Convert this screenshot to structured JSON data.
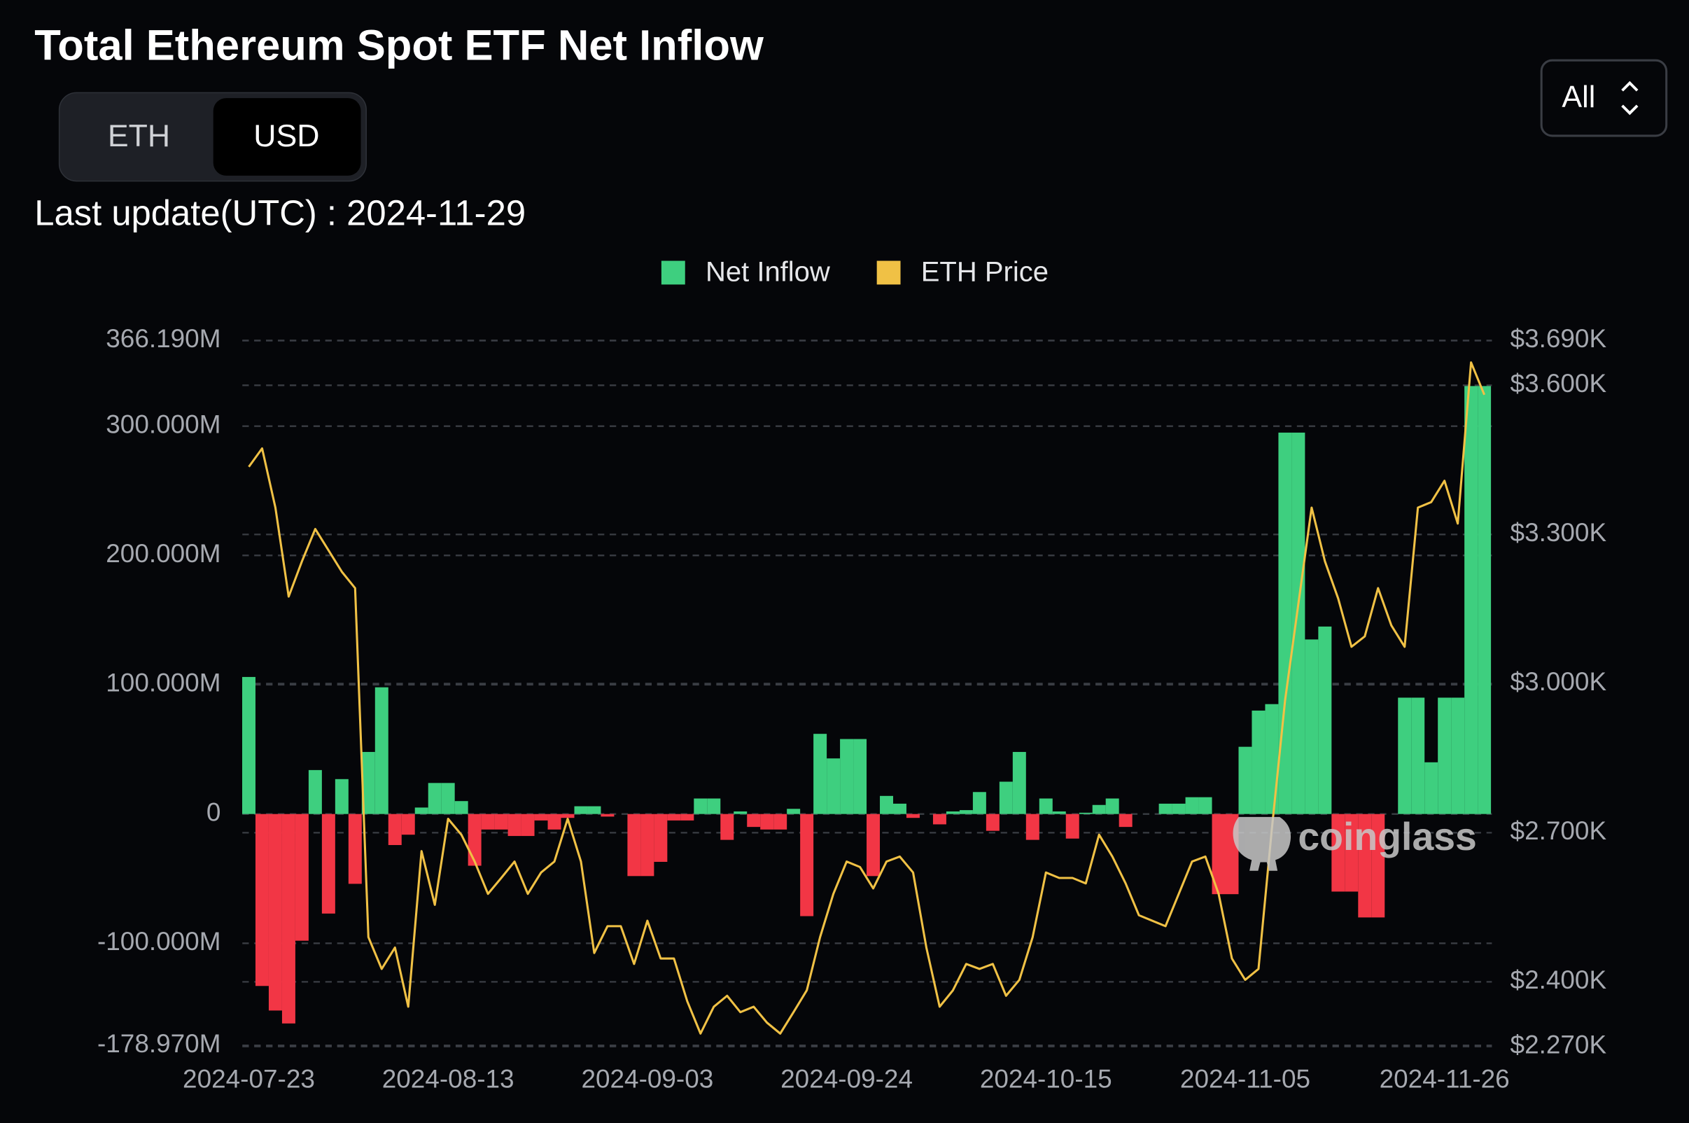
{
  "chart_data": {
    "type": "bar",
    "title": "Total Ethereum Spot ETF Net Inflow",
    "toggle": [
      "ETH",
      "USD"
    ],
    "range_select": "All",
    "last_update": "Last update(UTC) : 2024-11-29",
    "watermark": "coinglass",
    "categories": [
      "2024-07-23",
      null,
      null,
      null,
      null,
      null,
      null,
      null,
      null,
      null,
      null,
      null,
      null,
      null,
      null,
      "2024-08-13",
      null,
      null,
      null,
      null,
      null,
      null,
      null,
      null,
      null,
      null,
      null,
      null,
      null,
      null,
      "2024-09-03",
      null,
      null,
      null,
      null,
      null,
      null,
      null,
      null,
      null,
      null,
      null,
      null,
      null,
      null,
      "2024-09-24",
      null,
      null,
      null,
      null,
      null,
      null,
      null,
      null,
      null,
      null,
      null,
      null,
      null,
      null,
      "2024-10-15",
      null,
      null,
      null,
      null,
      null,
      null,
      null,
      null,
      null,
      null,
      null,
      null,
      null,
      null,
      "2024-11-05",
      null,
      null,
      null,
      null,
      null,
      null,
      null,
      null,
      null,
      null,
      null,
      null,
      null,
      null,
      "2024-11-26",
      null,
      null,
      null
    ],
    "series": [
      {
        "name": "Net Inflow",
        "color": "#3ecf7f",
        "negative_color": "#f23645",
        "values": [
          106000000,
          -133000000,
          -152000000,
          -162000000,
          -98000000,
          34000000,
          -77000000,
          27000000,
          -54000000,
          48000000,
          98000000,
          -24000000,
          -16000000,
          5000000,
          24000000,
          24000000,
          10000000,
          -40000000,
          -12000000,
          -12000000,
          -17000000,
          -17000000,
          -5000000,
          -12000000,
          -3000000,
          6000000,
          6000000,
          -2000000,
          0,
          -48000000,
          -48000000,
          -37000000,
          -5000000,
          -5000000,
          12000000,
          12000000,
          -20000000,
          2000000,
          -10000000,
          -12000000,
          -12000000,
          4000000,
          -79000000,
          62000000,
          43000000,
          58000000,
          58000000,
          -48000000,
          14000000,
          8000000,
          -3000000,
          0,
          -8000000,
          2000000,
          3000000,
          17000000,
          -13000000,
          25000000,
          48000000,
          -20000000,
          12000000,
          2000000,
          -19000000,
          1000000,
          7000000,
          12000000,
          -10000000,
          0,
          0,
          8000000,
          8000000,
          13000000,
          13000000,
          -62000000,
          -62000000,
          52000000,
          80000000,
          85000000,
          295000000,
          295000000,
          135000000,
          145000000,
          -60000000,
          -60000000,
          -80000000,
          -80000000,
          0,
          90000000,
          90000000,
          40000000,
          90000000,
          90000000,
          331000000,
          331000000
        ]
      },
      {
        "name": "ETH Price",
        "color": "#f0c145",
        "type": "line",
        "axis": "y2",
        "values": [
          3436,
          3473,
          3354,
          3175,
          3246,
          3311,
          3268,
          3225,
          3192,
          2490,
          2426,
          2469,
          2350,
          2663,
          2555,
          2728,
          2696,
          2642,
          2577,
          2609,
          2642,
          2577,
          2620,
          2642,
          2728,
          2642,
          2458,
          2512,
          2512,
          2436,
          2523,
          2447,
          2447,
          2361,
          2296,
          2350,
          2372,
          2339,
          2350,
          2318,
          2296,
          2339,
          2383,
          2490,
          2577,
          2642,
          2631,
          2588,
          2642,
          2652,
          2620,
          2469,
          2350,
          2383,
          2436,
          2426,
          2436,
          2372,
          2404,
          2490,
          2620,
          2609,
          2609,
          2598,
          2696,
          2652,
          2598,
          2534,
          2523,
          2512,
          2577,
          2642,
          2652,
          2577,
          2447,
          2404,
          2426,
          2706,
          2966,
          3160,
          3354,
          3246,
          3171,
          3074,
          3095,
          3192,
          3117,
          3074,
          3354,
          3365,
          3408,
          3322,
          3646,
          3581
        ]
      }
    ],
    "ylim": [
      -178970000,
      366190000
    ],
    "yticks": [
      {
        "value": 366190000,
        "label": "366.190M"
      },
      {
        "value": 300000000,
        "label": "300.000M"
      },
      {
        "value": 200000000,
        "label": "200.000M"
      },
      {
        "value": 100000000,
        "label": "100.000M"
      },
      0,
      {
        "value": -100000000,
        "label": "-100.000M"
      },
      {
        "value": -178970000,
        "label": "-178.970M"
      }
    ],
    "y2lim": [
      2270,
      3690
    ],
    "y2ticks": [
      {
        "value": 3690,
        "label": "$3.690K"
      },
      {
        "value": 3600,
        "label": "$3.600K"
      },
      {
        "value": 3300,
        "label": "$3.300K"
      },
      {
        "value": 3000,
        "label": "$3.000K"
      },
      {
        "value": 2700,
        "label": "$2.700K"
      },
      {
        "value": 2400,
        "label": "$2.400K"
      },
      {
        "value": 2270,
        "label": "$2.270K"
      }
    ],
    "grid": true
  }
}
